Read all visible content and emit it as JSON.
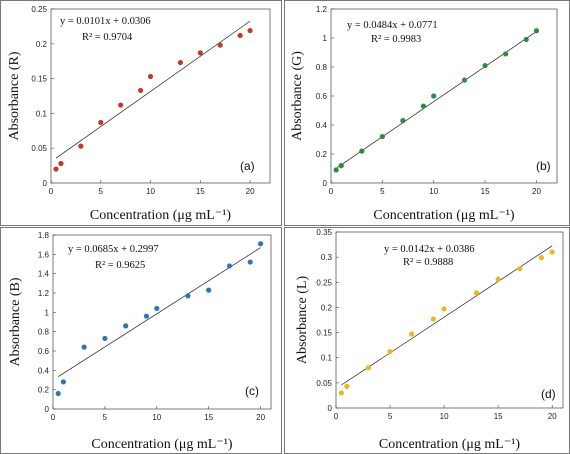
{
  "chart_data": [
    {
      "type": "scatter",
      "panel": "(a)",
      "xlabel": "Concentration (μg mL⁻¹)",
      "ylabel": "Absorbance (R)",
      "xlim": [
        0,
        22
      ],
      "ylim": [
        0,
        0.25
      ],
      "xticks": [
        0,
        5,
        10,
        15,
        20
      ],
      "yticks": [
        0,
        0.05,
        0.1,
        0.15,
        0.2,
        0.25
      ],
      "ytick_labels": [
        "0",
        "0.05",
        "0.1",
        "0.15",
        "0.2",
        "0.25"
      ],
      "equation": "y = 0.0101x + 0.0306",
      "r2_text": "R² = 0.9704",
      "fit": {
        "slope": 0.0101,
        "intercept": 0.0306,
        "x_range": [
          0.5,
          20
        ]
      },
      "color": "#c0392b",
      "grid": false,
      "series": [
        {
          "x": [
            0.5,
            1,
            3,
            5,
            7,
            9,
            10,
            13,
            15,
            17,
            19,
            20
          ],
          "y": [
            0.02,
            0.028,
            0.053,
            0.087,
            0.112,
            0.133,
            0.153,
            0.173,
            0.187,
            0.198,
            0.212,
            0.219
          ]
        }
      ]
    },
    {
      "type": "scatter",
      "panel": "(b)",
      "xlabel": "Concentration (μg mL⁻¹)",
      "ylabel": "Absorbance (G)",
      "xlim": [
        0,
        22
      ],
      "ylim": [
        0,
        1.2
      ],
      "xticks": [
        0,
        5,
        10,
        15,
        20
      ],
      "yticks": [
        0,
        0.2,
        0.4,
        0.6,
        0.8,
        1,
        1.2
      ],
      "ytick_labels": [
        "0",
        "0.2",
        "0.4",
        "0.6",
        "0.8",
        "1",
        "1.2"
      ],
      "equation": "y = 0.0484x + 0.0771",
      "r2_text": "R² = 0.9983",
      "fit": {
        "slope": 0.0484,
        "intercept": 0.0771,
        "x_range": [
          0.5,
          20
        ]
      },
      "color": "#2e8b3e",
      "grid": false,
      "series": [
        {
          "x": [
            0.5,
            1,
            3,
            5,
            7,
            9,
            10,
            13,
            15,
            17,
            19,
            20
          ],
          "y": [
            0.09,
            0.12,
            0.22,
            0.32,
            0.43,
            0.53,
            0.6,
            0.71,
            0.81,
            0.89,
            0.99,
            1.05
          ]
        }
      ]
    },
    {
      "type": "scatter",
      "panel": "(c)",
      "xlabel": "Concentration (μg mL⁻¹)",
      "ylabel": "Absorbance (B)",
      "xlim": [
        0,
        21
      ],
      "ylim": [
        0,
        1.8
      ],
      "xticks": [
        0,
        5,
        10,
        15,
        20
      ],
      "yticks": [
        0,
        0.2,
        0.4,
        0.6,
        0.8,
        1,
        1.2,
        1.4,
        1.6,
        1.8
      ],
      "ytick_labels": [
        "0",
        "0.2",
        "0.4",
        "0.6",
        "0.8",
        "1",
        "1.2",
        "1.4",
        "1.6",
        "1.8"
      ],
      "equation": "y = 0.0685x + 0.2997",
      "r2_text": "R² = 0.9625",
      "fit": {
        "slope": 0.0685,
        "intercept": 0.2997,
        "x_range": [
          0.5,
          20
        ]
      },
      "color": "#2e75b6",
      "grid": false,
      "series": [
        {
          "x": [
            0.5,
            1,
            3,
            5,
            7,
            9,
            10,
            13,
            15,
            17,
            19,
            20
          ],
          "y": [
            0.16,
            0.28,
            0.64,
            0.73,
            0.86,
            0.96,
            1.04,
            1.17,
            1.23,
            1.48,
            1.52,
            1.71
          ]
        }
      ]
    },
    {
      "type": "scatter",
      "panel": "(d)",
      "xlabel": "Concentration (μg mL⁻¹)",
      "ylabel": "Absorbance (L)",
      "xlim": [
        0,
        21
      ],
      "ylim": [
        0,
        0.35
      ],
      "xticks": [
        0,
        5,
        10,
        15,
        20
      ],
      "yticks": [
        0,
        0.05,
        0.1,
        0.15,
        0.2,
        0.25,
        0.3,
        0.35
      ],
      "ytick_labels": [
        "0",
        "0.05",
        "0.1",
        "0.15",
        "0.2",
        "0.25",
        "0.3",
        "0.35"
      ],
      "equation": "y = 0.0142x + 0.0386",
      "r2_text": "R² = 0.9888",
      "fit": {
        "slope": 0.0142,
        "intercept": 0.0386,
        "x_range": [
          0.5,
          20
        ]
      },
      "color": "#f2b51d",
      "grid": false,
      "series": [
        {
          "x": [
            0.5,
            1,
            3,
            5,
            7,
            9,
            10,
            13,
            15,
            17,
            19,
            20
          ],
          "y": [
            0.03,
            0.043,
            0.08,
            0.112,
            0.147,
            0.177,
            0.197,
            0.229,
            0.256,
            0.277,
            0.299,
            0.31
          ]
        }
      ]
    }
  ]
}
